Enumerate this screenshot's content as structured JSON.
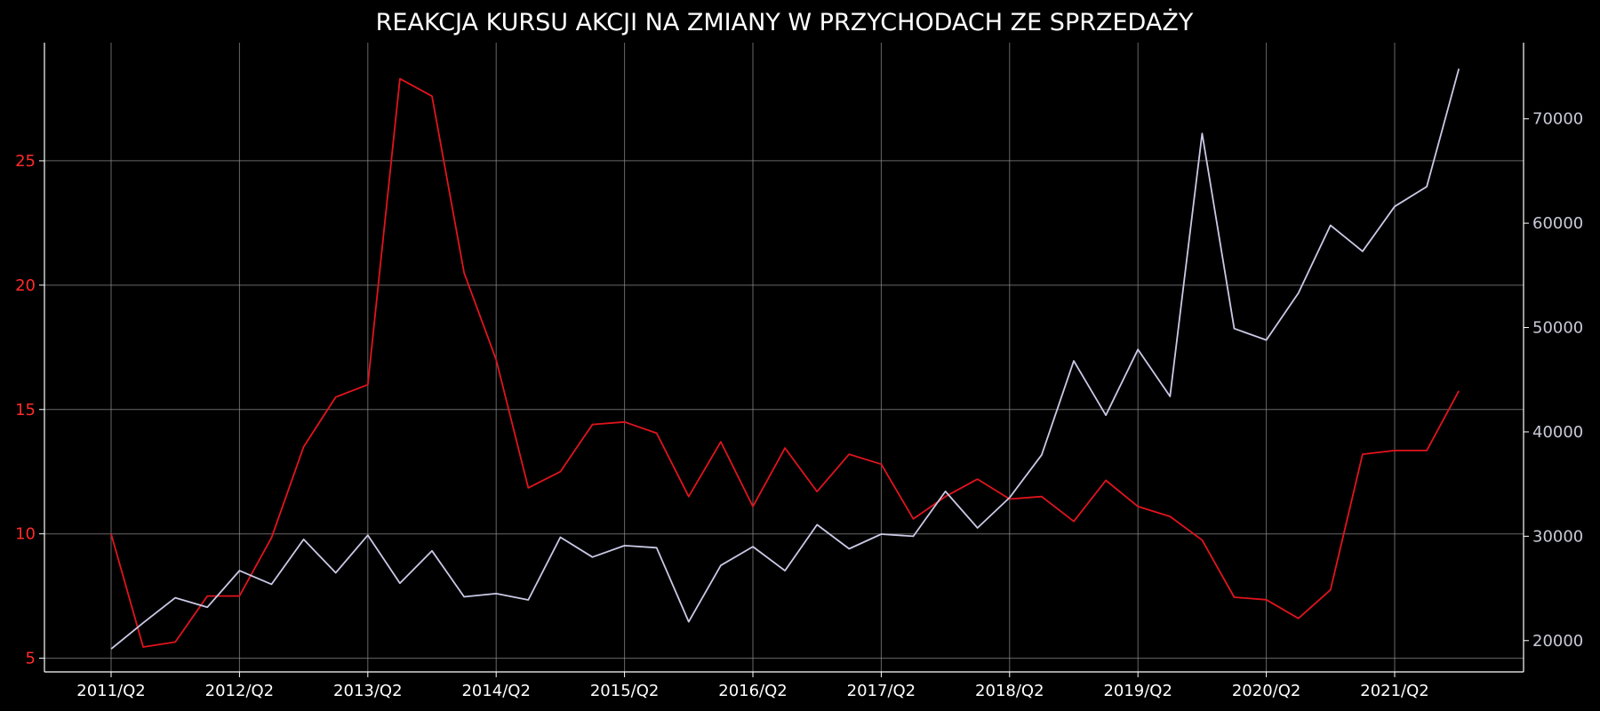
{
  "chart_data": {
    "type": "line",
    "title": "REAKCJA KURSU AKCJI NA ZMIANY W PRZYCHODACH ZE SPRZEDAŻY",
    "x": [
      "2011/Q2",
      "2011/Q3",
      "2011/Q4",
      "2012/Q1",
      "2012/Q2",
      "2012/Q3",
      "2012/Q4",
      "2013/Q1",
      "2013/Q2",
      "2013/Q3",
      "2013/Q4",
      "2014/Q1",
      "2014/Q2",
      "2014/Q3",
      "2014/Q4",
      "2015/Q1",
      "2015/Q2",
      "2015/Q3",
      "2015/Q4",
      "2016/Q1",
      "2016/Q2",
      "2016/Q3",
      "2016/Q4",
      "2017/Q1",
      "2017/Q2",
      "2017/Q3",
      "2017/Q4",
      "2018/Q1",
      "2018/Q2",
      "2018/Q3",
      "2018/Q4",
      "2019/Q1",
      "2019/Q2",
      "2019/Q3",
      "2019/Q4",
      "2020/Q1",
      "2020/Q2",
      "2020/Q3",
      "2020/Q4",
      "2021/Q1",
      "2021/Q2",
      "2021/Q3",
      "2021/Q4"
    ],
    "x_tick_labels": [
      "2011/Q2",
      "2012/Q2",
      "2013/Q2",
      "2014/Q2",
      "2015/Q2",
      "2016/Q2",
      "2017/Q2",
      "2018/Q2",
      "2019/Q2",
      "2020/Q2",
      "2021/Q2"
    ],
    "series": [
      {
        "axis": "left",
        "color": "#e0141e",
        "values": [
          10.0,
          5.45,
          5.65,
          7.5,
          7.5,
          9.85,
          13.5,
          15.5,
          16.0,
          28.3,
          27.6,
          20.5,
          17.0,
          11.85,
          12.5,
          14.4,
          14.5,
          14.05,
          11.5,
          13.7,
          11.1,
          13.45,
          11.7,
          13.2,
          12.8,
          10.6,
          11.5,
          12.2,
          11.4,
          11.5,
          10.5,
          12.15,
          11.1,
          10.7,
          9.75,
          7.45,
          7.35,
          6.6,
          7.75,
          13.2,
          13.35,
          13.35,
          15.75
        ]
      },
      {
        "axis": "right",
        "color": "#c9c9e6",
        "values": [
          19200,
          21700,
          24100,
          23200,
          26700,
          25400,
          29700,
          26500,
          30100,
          25500,
          28600,
          24200,
          24500,
          23900,
          29900,
          28000,
          29100,
          28900,
          21800,
          27200,
          29000,
          26700,
          31100,
          28800,
          30200,
          30000,
          34300,
          30800,
          33700,
          37800,
          46800,
          41600,
          47900,
          43400,
          68600,
          49900,
          48800,
          53300,
          59800,
          57300,
          61600,
          63500,
          74800
        ]
      }
    ],
    "y_left": {
      "ticks": [
        5,
        10,
        15,
        20,
        25
      ],
      "ylim": [
        4.45,
        29.75
      ],
      "color": "#ff2b2b"
    },
    "y_right": {
      "ticks": [
        20000,
        30000,
        40000,
        50000,
        60000,
        70000
      ],
      "ylim": [
        17000,
        77300
      ],
      "color": "#c9c9d9"
    },
    "grid": true,
    "background": "#000000"
  }
}
